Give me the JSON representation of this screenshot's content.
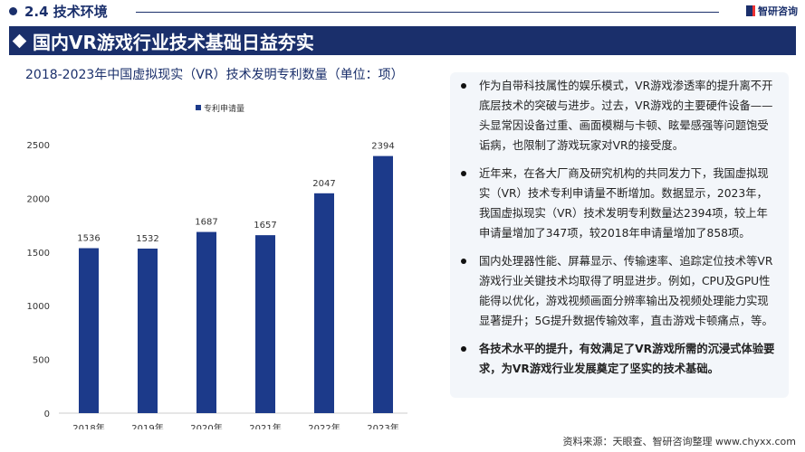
{
  "header": {
    "section": "2.4 技术环境",
    "logo": "智研咨询",
    "banner": "国内VR游戏行业技术基础日益夯实"
  },
  "colors": {
    "brand": "#1a2f6b",
    "bar": "#1c3a8a",
    "panel": "#f3f6fa"
  },
  "chart_data": {
    "type": "bar",
    "title": "2018-2023年中国虚拟现实（VR）技术发明专利数量（单位：项）",
    "categories": [
      "2018年",
      "2019年",
      "2020年",
      "2021年",
      "2022年",
      "2023年"
    ],
    "series": [
      {
        "name": "专利申请量",
        "values": [
          1536,
          1532,
          1687,
          1657,
          2047,
          2394
        ]
      }
    ],
    "yticks": [
      0,
      500,
      1000,
      1500,
      2000,
      2500
    ],
    "ylim": [
      0,
      2500
    ],
    "legend": "top",
    "grid": false
  },
  "panel": {
    "paragraphs": [
      {
        "text": "作为自带科技属性的娱乐模式，VR游戏渗透率的提升离不开底层技术的突破与进步。过去，VR游戏的主要硬件设备——头显常因设备过重、画面模糊与卡顿、眩晕感强等问题饱受诟病，也限制了游戏玩家对VR的接受度。",
        "bold": false
      },
      {
        "text": "近年来，在各大厂商及研究机构的共同发力下，我国虚拟现实（VR）技术专利申请量不断增加。数据显示，2023年，我国虚拟现实（VR）技术发明专利数量达2394项，较上年申请量增加了347项，较2018年申请量增加了858项。",
        "bold": false
      },
      {
        "text": "国内处理器性能、屏幕显示、传输速率、追踪定位技术等VR游戏行业关键技术均取得了明显进步。例如，CPU及GPU性能得以优化，游戏视频画面分辨率输出及视频处理能力实现显著提升；5G提升数据传输效率，直击游戏卡顿痛点，等。",
        "bold": false
      },
      {
        "text": "各技术水平的提升，有效满足了VR游戏所需的沉浸式体验要求，为VR游戏行业发展奠定了坚实的技术基础。",
        "bold": true
      }
    ]
  },
  "source": "资料来源：天眼查、智研咨询整理 www.chyxx.com"
}
